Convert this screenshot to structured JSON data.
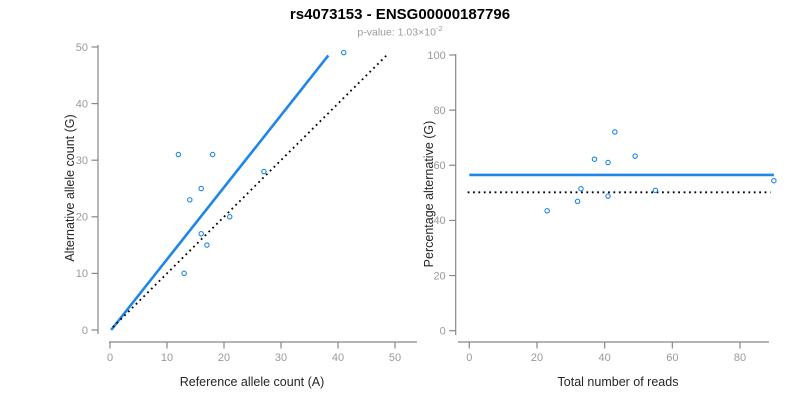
{
  "header": {
    "title": "rs4073153 - ENSG00000187796",
    "subtitle_label": "p-value: ",
    "subtitle_value": "1.03×10",
    "subtitle_exponent": "-2"
  },
  "colors": {
    "accent_blue": "#1E86E8",
    "dotted_black": "#000000",
    "axis_gray": "#888888",
    "tick_label_gray": "#999999",
    "axis_title_color": "#262626"
  },
  "chart_data": [
    {
      "id": "allele-count-scatter",
      "type": "scatter",
      "xlabel": "Reference allele count (A)",
      "ylabel": "Alternative allele count (G)",
      "xlim": [
        0,
        50
      ],
      "ylim": [
        0,
        50
      ],
      "x_ticks": [
        0,
        10,
        20,
        30,
        40,
        50
      ],
      "y_ticks": [
        0,
        10,
        20,
        30,
        40,
        50
      ],
      "grid": false,
      "points": [
        [
          12,
          31
        ],
        [
          18,
          31
        ],
        [
          27,
          28
        ],
        [
          16,
          25
        ],
        [
          14,
          23
        ],
        [
          21,
          20
        ],
        [
          16,
          17
        ],
        [
          17,
          15
        ],
        [
          13,
          10
        ],
        [
          41,
          49
        ]
      ],
      "lines": [
        {
          "name": "fitted-allelic-ratio-line",
          "style": "solid",
          "color_key": "accent_blue",
          "from": [
            0.2,
            0
          ],
          "to": [
            38.3,
            48.5
          ]
        },
        {
          "name": "identity-line",
          "style": "dotted",
          "color_key": "dotted_black",
          "from": [
            0.5,
            0.5
          ],
          "to": [
            48.5,
            48.5
          ]
        }
      ]
    },
    {
      "id": "percentage-vs-reads-scatter",
      "type": "scatter",
      "xlabel": "Total number of reads",
      "ylabel": "Percentage alternative (G)",
      "xlim": [
        0,
        90
      ],
      "ylim": [
        0,
        100
      ],
      "x_ticks": [
        0,
        20,
        40,
        60,
        80
      ],
      "y_ticks": [
        0,
        20,
        40,
        60,
        80,
        100
      ],
      "grid": false,
      "points": [
        [
          43,
          72.1
        ],
        [
          49,
          63.3
        ],
        [
          55,
          50.9
        ],
        [
          41,
          61.0
        ],
        [
          37,
          62.2
        ],
        [
          41,
          48.8
        ],
        [
          33,
          51.5
        ],
        [
          32,
          46.9
        ],
        [
          23,
          43.5
        ],
        [
          90,
          54.4
        ]
      ],
      "lines": [
        {
          "name": "mean-percentage-line",
          "style": "solid",
          "color_key": "accent_blue",
          "from": [
            0,
            56.5
          ],
          "to": [
            90,
            56.5
          ]
        },
        {
          "name": "fifty-percent-line",
          "style": "dotted",
          "color_key": "dotted_black",
          "from": [
            -0.5,
            50.2
          ],
          "to": [
            89,
            50.2
          ]
        }
      ]
    }
  ]
}
